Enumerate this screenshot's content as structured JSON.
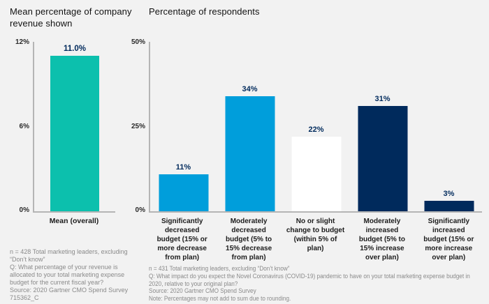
{
  "colors": {
    "background": "#f2f2f2",
    "teal": "#0cc0ad",
    "blue": "#009edb",
    "navy": "#002a5c",
    "white_bar": "#ffffff",
    "axis": "#b5b5b5",
    "footnote_gray": "#8a8a8a"
  },
  "chart_data": [
    {
      "type": "bar",
      "title": "Mean percentage of company\nrevenue shown",
      "categories": [
        "Mean (overall)"
      ],
      "values": [
        11.0
      ],
      "value_labels": [
        "11.0%"
      ],
      "bar_colors": [
        "#0cc0ad"
      ],
      "xlabel": "",
      "ylabel": "",
      "ylim": [
        0,
        12
      ],
      "ytick_labels": [
        "12%",
        "6%",
        "0%"
      ],
      "grid": false,
      "legend": "none",
      "footnote": "n = 428 Total marketing leaders, excluding\n“Don’t know”\nQ: What percentage of your revenue is\nallocated to your total marketing expense\nbudget for the current fiscal year?\nSource: 2020 Gartner CMO Spend Survey\n715362_C"
    },
    {
      "type": "bar",
      "title": "Percentage of respondents",
      "categories": [
        "Significantly\ndecreased\nbudget (15% or\nmore decrease\nfrom plan)",
        "Moderately\ndecreased\nbudget (5% to\n15% decrease\nfrom plan)",
        "No or slight\nchange to budget\n(within 5% of plan)",
        "Moderately\nincreased\nbudget (5% to\n15% increase\nover plan)",
        "Significantly\nincreased\nbudget (15% or\nmore increase\nover plan)"
      ],
      "values": [
        11,
        34,
        22,
        31,
        3
      ],
      "value_labels": [
        "11%",
        "34%",
        "22%",
        "31%",
        "3%"
      ],
      "bar_colors": [
        "#009edb",
        "#009edb",
        "#ffffff",
        "#002a5c",
        "#002a5c"
      ],
      "xlabel": "",
      "ylabel": "",
      "ylim": [
        0,
        50
      ],
      "ytick_labels": [
        "50%",
        "25%",
        "0%"
      ],
      "grid": false,
      "legend": "none",
      "footnote": "n = 431 Total marketing leaders, excluding “Don’t know”\nQ: What impact do you expect the Novel Coronavirus (COVID-19) pandemic to have on your total marketing expense budget in\n2020, relative to your original plan?\nSource: 2020 Gartner CMO Spend Survey\nNote: Percentages may not add to sum due to rounding."
    }
  ]
}
